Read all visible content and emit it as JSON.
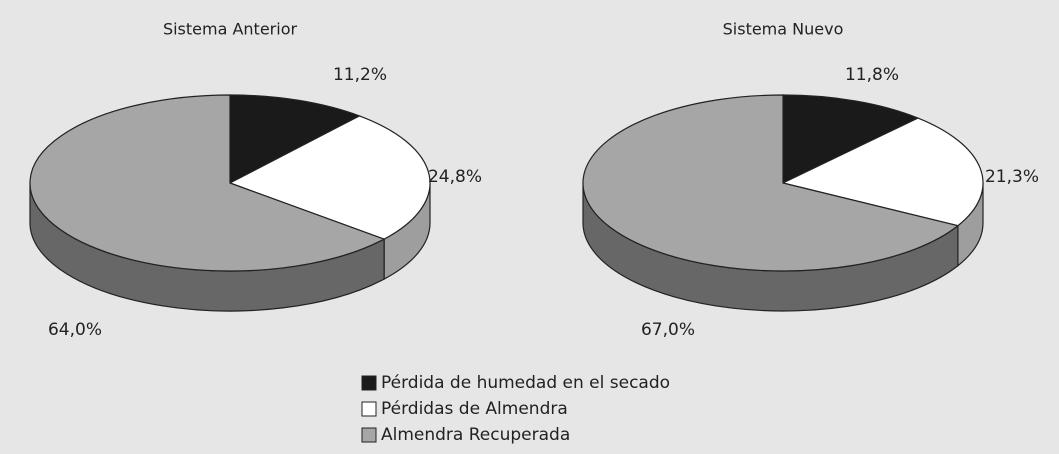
{
  "chart_data": [
    {
      "type": "pie",
      "title": "Sistema Anterior",
      "values": [
        11.2,
        24.8,
        64.0
      ],
      "value_labels": [
        "11,2%",
        "24,8%",
        "64,0%"
      ]
    },
    {
      "type": "pie",
      "title": "Sistema Nuevo",
      "values": [
        11.8,
        21.3,
        67.0
      ],
      "value_labels": [
        "11,8%",
        "21,3%",
        "67,0%"
      ]
    }
  ],
  "legend": {
    "categories": [
      "Pérdida de humedad en el secado",
      "Pérdidas de Almendra",
      "Almendra Recuperada"
    ],
    "colors": [
      "#1a1a1a",
      "#ffffff",
      "#a6a6a6"
    ]
  }
}
